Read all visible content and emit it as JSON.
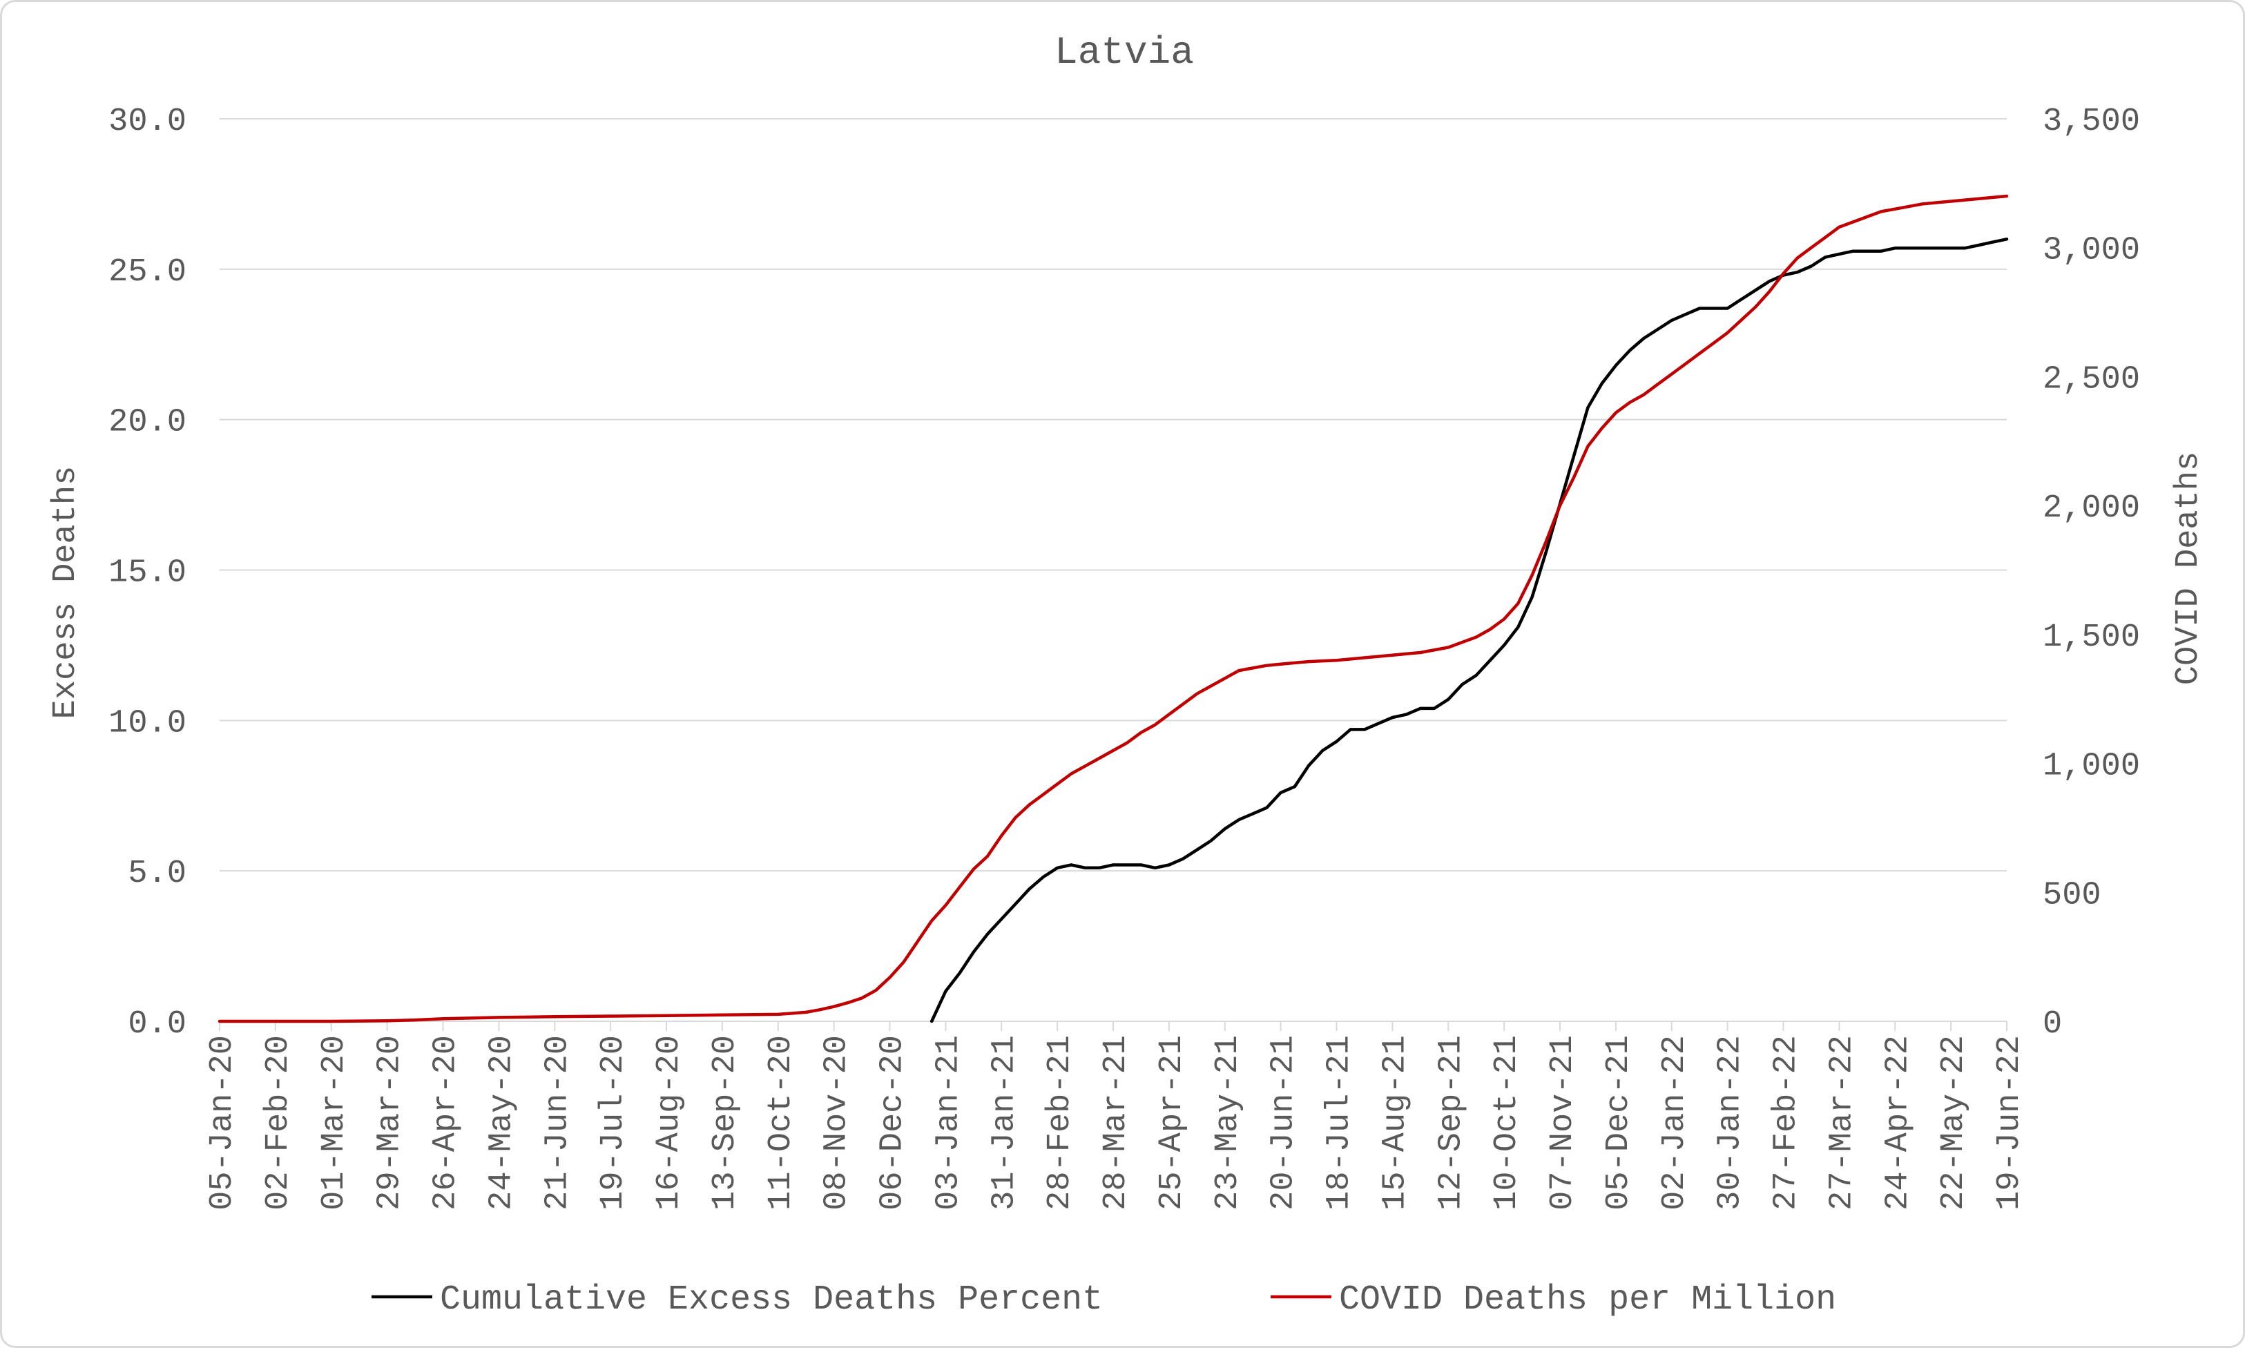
{
  "chart_data": {
    "type": "line",
    "title": "Latvia",
    "ylabel": "Excess Deaths",
    "y2label": "COVID Deaths",
    "ylim": [
      0,
      30
    ],
    "y2lim": [
      0,
      3500
    ],
    "grid": true,
    "legend_position": "bottom",
    "colors": {
      "Cumulative Excess Deaths Percent": "#000000",
      "COVID Deaths per Million": "#c00000",
      "grid": "#d9d9d9",
      "text": "#595959"
    },
    "y_ticks": [
      "0.0",
      "5.0",
      "10.0",
      "15.0",
      "20.0",
      "25.0",
      "30.0"
    ],
    "y2_ticks": [
      "0",
      "500",
      "1,000",
      "1,500",
      "2,000",
      "2,500",
      "3,000",
      "3,500"
    ],
    "x_ticks": [
      "05-Jan-20",
      "02-Feb-20",
      "01-Mar-20",
      "29-Mar-20",
      "26-Apr-20",
      "24-May-20",
      "21-Jun-20",
      "19-Jul-20",
      "16-Aug-20",
      "13-Sep-20",
      "11-Oct-20",
      "08-Nov-20",
      "06-Dec-20",
      "03-Jan-21",
      "31-Jan-21",
      "28-Feb-21",
      "28-Mar-21",
      "25-Apr-21",
      "23-May-21",
      "20-Jun-21",
      "18-Jul-21",
      "15-Aug-21",
      "12-Sep-21",
      "10-Oct-21",
      "07-Nov-21",
      "05-Dec-21",
      "02-Jan-22",
      "30-Jan-22",
      "27-Feb-22",
      "27-Mar-22",
      "24-Apr-22",
      "22-May-22",
      "19-Jun-22"
    ],
    "series": [
      {
        "name": "Cumulative Excess Deaths Percent",
        "axis": "left",
        "x": [
          "2020-12-27",
          "2021-01-03",
          "2021-01-10",
          "2021-01-17",
          "2021-01-24",
          "2021-01-31",
          "2021-02-07",
          "2021-02-14",
          "2021-02-21",
          "2021-02-28",
          "2021-03-07",
          "2021-03-14",
          "2021-03-21",
          "2021-03-28",
          "2021-04-04",
          "2021-04-11",
          "2021-04-18",
          "2021-04-25",
          "2021-05-02",
          "2021-05-09",
          "2021-05-16",
          "2021-05-23",
          "2021-05-30",
          "2021-06-06",
          "2021-06-13",
          "2021-06-20",
          "2021-06-27",
          "2021-07-04",
          "2021-07-11",
          "2021-07-18",
          "2021-07-25",
          "2021-08-01",
          "2021-08-08",
          "2021-08-15",
          "2021-08-22",
          "2021-08-29",
          "2021-09-05",
          "2021-09-12",
          "2021-09-19",
          "2021-09-26",
          "2021-10-03",
          "2021-10-10",
          "2021-10-17",
          "2021-10-24",
          "2021-10-31",
          "2021-11-07",
          "2021-11-14",
          "2021-11-21",
          "2021-11-28",
          "2021-12-05",
          "2021-12-12",
          "2021-12-19",
          "2021-12-26",
          "2022-01-02",
          "2022-01-09",
          "2022-01-16",
          "2022-01-23",
          "2022-01-30",
          "2022-02-06",
          "2022-02-13",
          "2022-02-20",
          "2022-02-27",
          "2022-03-06",
          "2022-03-13",
          "2022-03-20",
          "2022-03-27",
          "2022-04-03",
          "2022-04-10",
          "2022-04-17",
          "2022-04-24",
          "2022-05-01",
          "2022-05-08",
          "2022-05-15",
          "2022-05-22",
          "2022-05-29",
          "2022-06-05",
          "2022-06-12",
          "2022-06-19"
        ],
        "values": [
          0.0,
          1.0,
          1.6,
          2.3,
          2.9,
          3.4,
          3.9,
          4.4,
          4.8,
          5.1,
          5.2,
          5.1,
          5.1,
          5.2,
          5.2,
          5.2,
          5.1,
          5.2,
          5.4,
          5.7,
          6.0,
          6.4,
          6.7,
          6.9,
          7.1,
          7.6,
          7.8,
          8.5,
          9.0,
          9.3,
          9.7,
          9.7,
          9.9,
          10.1,
          10.2,
          10.4,
          10.4,
          10.7,
          11.2,
          11.5,
          12.0,
          12.5,
          13.1,
          14.1,
          15.6,
          17.2,
          18.8,
          20.4,
          21.2,
          21.8,
          22.3,
          22.7,
          23.0,
          23.3,
          23.5,
          23.7,
          23.7,
          23.7,
          24.0,
          24.3,
          24.6,
          24.8,
          24.9,
          25.1,
          25.4,
          25.5,
          25.6,
          25.6,
          25.6,
          25.7,
          25.7,
          25.7,
          25.7,
          25.7,
          25.7,
          25.8,
          25.9,
          26.0
        ]
      },
      {
        "name": "COVID Deaths per Million",
        "axis": "right",
        "x": [
          "2020-01-05",
          "2020-03-01",
          "2020-03-29",
          "2020-04-12",
          "2020-04-26",
          "2020-05-24",
          "2020-06-21",
          "2020-07-19",
          "2020-08-16",
          "2020-09-13",
          "2020-10-11",
          "2020-10-25",
          "2020-11-01",
          "2020-11-08",
          "2020-11-15",
          "2020-11-22",
          "2020-11-29",
          "2020-12-06",
          "2020-12-13",
          "2020-12-20",
          "2020-12-27",
          "2021-01-03",
          "2021-01-10",
          "2021-01-17",
          "2021-01-24",
          "2021-01-31",
          "2021-02-07",
          "2021-02-14",
          "2021-02-21",
          "2021-02-28",
          "2021-03-07",
          "2021-03-14",
          "2021-03-21",
          "2021-03-28",
          "2021-04-04",
          "2021-04-11",
          "2021-04-18",
          "2021-04-25",
          "2021-05-02",
          "2021-05-09",
          "2021-05-16",
          "2021-05-23",
          "2021-05-30",
          "2021-06-06",
          "2021-06-13",
          "2021-06-20",
          "2021-06-27",
          "2021-07-04",
          "2021-07-18",
          "2021-08-01",
          "2021-08-15",
          "2021-08-29",
          "2021-09-12",
          "2021-09-26",
          "2021-10-03",
          "2021-10-10",
          "2021-10-17",
          "2021-10-24",
          "2021-10-31",
          "2021-11-07",
          "2021-11-14",
          "2021-11-21",
          "2021-11-28",
          "2021-12-05",
          "2021-12-12",
          "2021-12-19",
          "2021-12-26",
          "2022-01-02",
          "2022-01-09",
          "2022-01-16",
          "2022-01-23",
          "2022-01-30",
          "2022-02-06",
          "2022-02-13",
          "2022-02-20",
          "2022-02-27",
          "2022-03-06",
          "2022-03-13",
          "2022-03-20",
          "2022-03-27",
          "2022-04-03",
          "2022-04-10",
          "2022-04-17",
          "2022-04-24",
          "2022-05-08",
          "2022-05-22",
          "2022-06-05",
          "2022-06-19"
        ],
        "values": [
          0,
          0,
          2,
          5,
          10,
          15,
          18,
          20,
          22,
          25,
          27,
          35,
          45,
          57,
          72,
          90,
          120,
          170,
          230,
          310,
          390,
          450,
          520,
          590,
          640,
          720,
          790,
          840,
          880,
          920,
          960,
          990,
          1020,
          1050,
          1080,
          1120,
          1150,
          1190,
          1230,
          1270,
          1300,
          1330,
          1360,
          1370,
          1380,
          1385,
          1390,
          1395,
          1400,
          1410,
          1420,
          1430,
          1450,
          1490,
          1520,
          1560,
          1620,
          1730,
          1860,
          2000,
          2110,
          2230,
          2300,
          2360,
          2400,
          2430,
          2470,
          2510,
          2550,
          2590,
          2630,
          2670,
          2720,
          2770,
          2830,
          2900,
          2960,
          3000,
          3040,
          3080,
          3100,
          3120,
          3140,
          3150,
          3170,
          3180,
          3190,
          3200
        ]
      }
    ]
  }
}
